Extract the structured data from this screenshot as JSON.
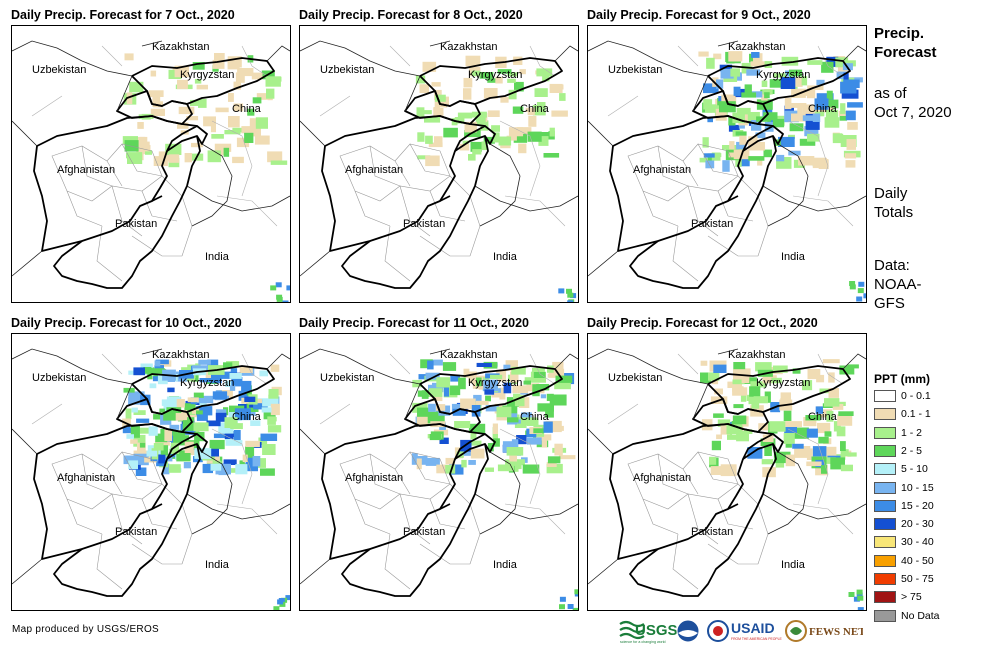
{
  "panels": [
    {
      "title": "Daily Precip. Forecast for 7 Oct., 2020",
      "intensity": 1
    },
    {
      "title": "Daily Precip. Forecast for 8 Oct., 2020",
      "intensity": 1
    },
    {
      "title": "Daily Precip. Forecast for 9 Oct., 2020",
      "intensity": 3
    },
    {
      "title": "Daily Precip. Forecast for 10 Oct., 2020",
      "intensity": 4
    },
    {
      "title": "Daily Precip. Forecast for 11 Oct., 2020",
      "intensity": 3
    },
    {
      "title": "Daily Precip. Forecast for 12 Oct., 2020",
      "intensity": 2
    }
  ],
  "map_labels": {
    "kazakhstan": "Kazakhstan",
    "uzbekistan": "Uzbekistan",
    "kyrgyzstan": "Kyrgyzstan",
    "china": "China",
    "afghanistan": "Afghanistan",
    "pakistan": "Pakistan",
    "india": "India"
  },
  "sidebar": {
    "title_line1": "Precip.",
    "title_line2": "Forecast",
    "asof_line1": "as of",
    "asof_line2": "Oct 7, 2020",
    "totals_line1": "Daily",
    "totals_line2": "Totals",
    "data_line1": "Data:",
    "data_line2": "NOAA-",
    "data_line3": "GFS"
  },
  "legend": {
    "title": "PPT (mm)",
    "items": [
      {
        "label": "0 - 0.1",
        "color": "#ffffff"
      },
      {
        "label": "0.1 - 1",
        "color": "#f0dcb4"
      },
      {
        "label": "1 - 2",
        "color": "#a8f08c"
      },
      {
        "label": "2 - 5",
        "color": "#5ed65a"
      },
      {
        "label": "5 - 10",
        "color": "#b4f0f8"
      },
      {
        "label": "10 - 15",
        "color": "#78b4f0"
      },
      {
        "label": "15 - 20",
        "color": "#3c8ce6"
      },
      {
        "label": "20 - 30",
        "color": "#1450d2"
      },
      {
        "label": "30 - 40",
        "color": "#f8e678"
      },
      {
        "label": "40 - 50",
        "color": "#f8a000"
      },
      {
        "label": "50 - 75",
        "color": "#f03c00"
      },
      {
        "label": "> 75",
        "color": "#a01414"
      },
      {
        "label": "No Data",
        "color": "#999999"
      }
    ]
  },
  "credit": "Map produced by USGS/EROS",
  "logos": {
    "usgs": "USGS",
    "usgs_tagline": "science for a changing world",
    "usaid": "USAID",
    "usaid_tagline": "FROM THE AMERICAN PEOPLE",
    "fewsnet": "FEWS NET"
  }
}
